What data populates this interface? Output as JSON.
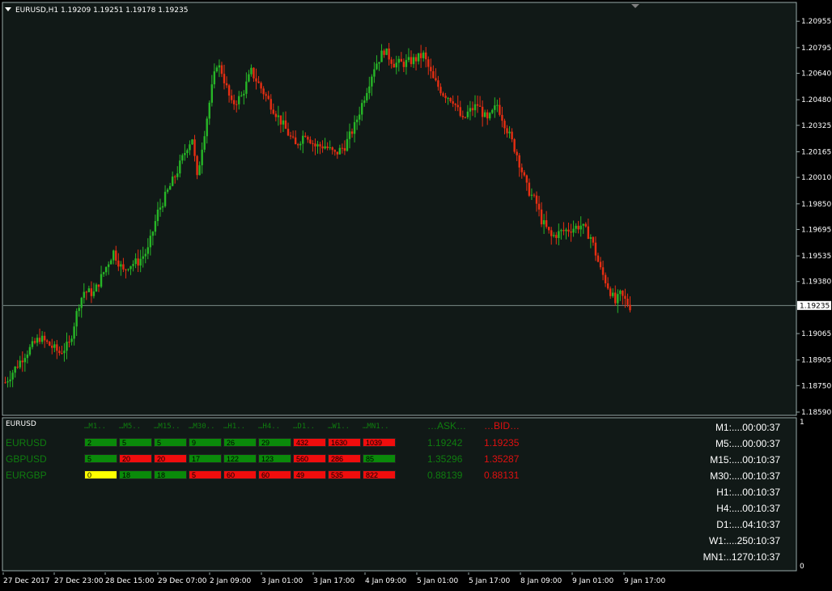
{
  "window": {
    "symbol_title": "EURUSD,H1",
    "ohlc": "1.19209 1.19251 1.19178 1.19235"
  },
  "colors": {
    "background": "#111917",
    "bull": "#27b627",
    "bear": "#e62e12",
    "grid_line": "#7a8a86",
    "green_cell": "#0a8a0a",
    "red_cell": "#f00d0d",
    "yellow_cell": "#ffff00"
  },
  "chart_data": {
    "type": "candlestick",
    "symbol": "EURUSD",
    "timeframe": "H1",
    "ylim": [
      1.1859,
      1.2101
    ],
    "y_ticks": [
      "1.20955",
      "1.20795",
      "1.20640",
      "1.20480",
      "1.20325",
      "1.20165",
      "1.20010",
      "1.19850",
      "1.19695",
      "1.19535",
      "1.19380",
      "1.19065",
      "1.18905",
      "1.18750",
      "1.18590"
    ],
    "current_price": "1.19235",
    "x_ticks": [
      "27 Dec 2017",
      "27 Dec 23:00",
      "28 Dec 15:00",
      "29 Dec 07:00",
      "2 Jan 09:00",
      "3 Jan 01:00",
      "3 Jan 17:00",
      "4 Jan 09:00",
      "5 Jan 01:00",
      "5 Jan 17:00",
      "8 Jan 09:00",
      "9 Jan 01:00",
      "9 Jan 17:00"
    ],
    "anchors": [
      [
        0,
        1.1877
      ],
      [
        8,
        1.1894
      ],
      [
        14,
        1.1904
      ],
      [
        22,
        1.1895
      ],
      [
        26,
        1.19
      ],
      [
        30,
        1.1925
      ],
      [
        32,
        1.1932
      ],
      [
        36,
        1.1931
      ],
      [
        42,
        1.195
      ],
      [
        44,
        1.1956
      ],
      [
        48,
        1.1944
      ],
      [
        50,
        1.1948
      ],
      [
        54,
        1.195
      ],
      [
        58,
        1.1957
      ],
      [
        62,
        1.198
      ],
      [
        70,
        1.2005
      ],
      [
        74,
        1.202
      ],
      [
        76,
        1.2025
      ],
      [
        78,
        1.2
      ],
      [
        80,
        1.202
      ],
      [
        84,
        1.2055
      ],
      [
        86,
        1.207
      ],
      [
        88,
        1.2065
      ],
      [
        92,
        1.2045
      ],
      [
        96,
        1.205
      ],
      [
        100,
        1.2065
      ],
      [
        104,
        1.2055
      ],
      [
        108,
        1.2045
      ],
      [
        114,
        1.203
      ],
      [
        118,
        1.202
      ],
      [
        122,
        1.2028
      ],
      [
        126,
        1.202
      ],
      [
        130,
        1.202
      ],
      [
        134,
        1.2015
      ],
      [
        138,
        1.202
      ],
      [
        142,
        1.2032
      ],
      [
        146,
        1.205
      ],
      [
        150,
        1.2068
      ],
      [
        154,
        1.2078
      ],
      [
        158,
        1.207
      ],
      [
        162,
        1.207
      ],
      [
        166,
        1.2072
      ],
      [
        170,
        1.2075
      ],
      [
        174,
        1.206
      ],
      [
        178,
        1.2052
      ],
      [
        182,
        1.2048
      ],
      [
        186,
        1.2035
      ],
      [
        188,
        1.204
      ],
      [
        192,
        1.2045
      ],
      [
        196,
        1.2035
      ],
      [
        200,
        1.2045
      ],
      [
        204,
        1.203
      ],
      [
        208,
        1.2015
      ],
      [
        212,
        1.1995
      ],
      [
        216,
        1.1985
      ],
      [
        218,
        1.1975
      ],
      [
        222,
        1.1965
      ],
      [
        226,
        1.1968
      ],
      [
        230,
        1.197
      ],
      [
        234,
        1.1972
      ],
      [
        238,
        1.1965
      ],
      [
        242,
        1.1945
      ],
      [
        246,
        1.1932
      ],
      [
        248,
        1.1925
      ],
      [
        250,
        1.193
      ],
      [
        254,
        1.1923
      ]
    ]
  },
  "indicator": {
    "panel_name": "EURUSD",
    "timeframes": [
      "…M1..",
      "…M5..",
      "…M15..",
      "…M30..",
      "…H1..",
      "…H4..",
      "…D1..",
      "…W1..",
      "…MN1.."
    ],
    "ask_header": "…ASK…",
    "bid_header": "…BID…",
    "scale_top": "1",
    "scale_bottom": "0",
    "rows": [
      {
        "symbol": "EURUSD",
        "ask": "1.19242",
        "bid": "1.19235",
        "cells": [
          {
            "v": "2",
            "c": "g"
          },
          {
            "v": "5",
            "c": "g"
          },
          {
            "v": "5",
            "c": "g"
          },
          {
            "v": "9",
            "c": "g"
          },
          {
            "v": "26",
            "c": "g"
          },
          {
            "v": "29",
            "c": "g"
          },
          {
            "v": "432",
            "c": "r"
          },
          {
            "v": "1630",
            "c": "r"
          },
          {
            "v": "1039",
            "c": "r"
          }
        ]
      },
      {
        "symbol": "GBPUSD",
        "ask": "1.35296",
        "bid": "1.35287",
        "cells": [
          {
            "v": "5",
            "c": "g"
          },
          {
            "v": "20",
            "c": "r"
          },
          {
            "v": "20",
            "c": "r"
          },
          {
            "v": "17",
            "c": "g"
          },
          {
            "v": "122",
            "c": "g"
          },
          {
            "v": "123",
            "c": "g"
          },
          {
            "v": "560",
            "c": "r"
          },
          {
            "v": "286",
            "c": "r"
          },
          {
            "v": "85",
            "c": "g"
          }
        ]
      },
      {
        "symbol": "EURGBP",
        "ask": "0.88139",
        "bid": "0.88131",
        "cells": [
          {
            "v": "0",
            "c": "y"
          },
          {
            "v": "18",
            "c": "g"
          },
          {
            "v": "18",
            "c": "g"
          },
          {
            "v": "5",
            "c": "r"
          },
          {
            "v": "60",
            "c": "r"
          },
          {
            "v": "60",
            "c": "r"
          },
          {
            "v": "49",
            "c": "r"
          },
          {
            "v": "535",
            "c": "r"
          },
          {
            "v": "822",
            "c": "r"
          }
        ]
      }
    ],
    "countdowns": [
      "M1:....00:00:37",
      "M5:....00:00:37",
      "M15:....00:10:37",
      "M30:....00:10:37",
      "H1:....00:10:37",
      "H4:....00:10:37",
      "D1:....04:10:37",
      "W1:....250:10:37",
      "MN1:..1270:10:37"
    ]
  }
}
